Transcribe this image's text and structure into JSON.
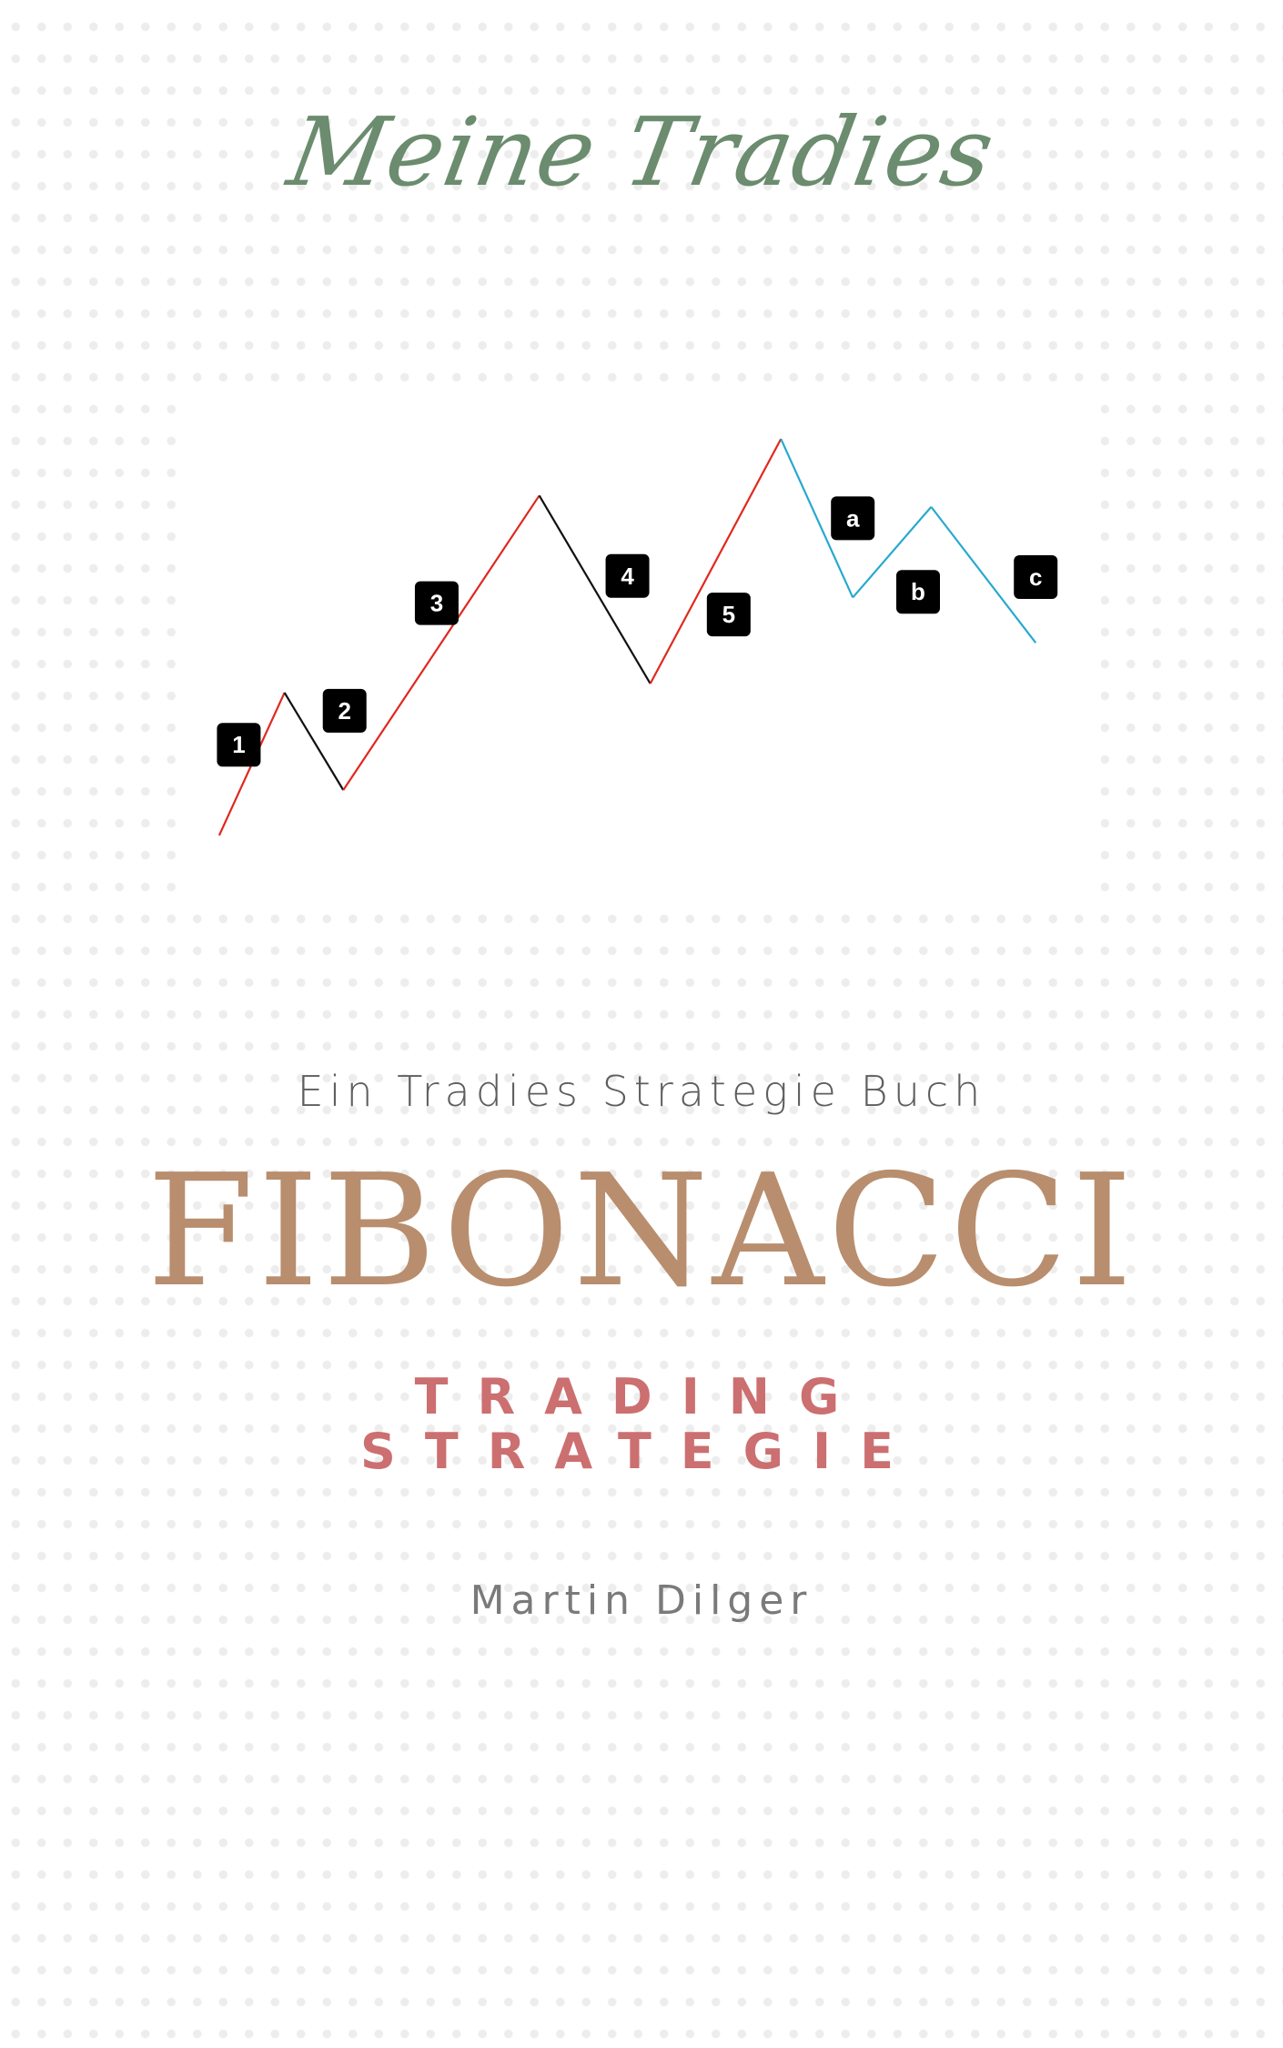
{
  "brand": "Meine Tradies",
  "subtitle": "Ein Tradies Strategie Buch",
  "title": "FIBONACCI",
  "tagline": [
    "TRADING",
    "STRATEGIE"
  ],
  "author": "Martin Dilger",
  "colors": {
    "brand": "#6b8c6e",
    "title": "#b88e6e",
    "tagline": "#cc6f70",
    "impulse": "#e0281e",
    "correction": "#111111",
    "abc": "#28a9cf",
    "label_bg": "#000000",
    "label_text": "#ffffff"
  },
  "wave": {
    "points": [
      {
        "x": 0.0,
        "y": 0.0
      },
      {
        "x": 1.0,
        "y": 1.26
      },
      {
        "x": 1.9,
        "y": 0.4
      },
      {
        "x": 4.9,
        "y": 3.0
      },
      {
        "x": 6.6,
        "y": 1.34
      },
      {
        "x": 8.6,
        "y": 3.5
      },
      {
        "x": 9.7,
        "y": 2.1
      },
      {
        "x": 10.9,
        "y": 2.9
      },
      {
        "x": 12.5,
        "y": 1.7
      }
    ],
    "segments": [
      {
        "from": 0,
        "to": 1,
        "kind": "impulse"
      },
      {
        "from": 1,
        "to": 2,
        "kind": "correction"
      },
      {
        "from": 2,
        "to": 3,
        "kind": "impulse"
      },
      {
        "from": 3,
        "to": 4,
        "kind": "correction"
      },
      {
        "from": 4,
        "to": 5,
        "kind": "impulse"
      },
      {
        "from": 5,
        "to": 6,
        "kind": "abc"
      },
      {
        "from": 6,
        "to": 7,
        "kind": "abc"
      },
      {
        "from": 7,
        "to": 8,
        "kind": "abc"
      }
    ],
    "labels": [
      {
        "text": "1",
        "x": 0.3,
        "y": 0.8
      },
      {
        "text": "2",
        "x": 1.92,
        "y": 1.1
      },
      {
        "text": "3",
        "x": 3.33,
        "y": 2.05
      },
      {
        "text": "4",
        "x": 6.25,
        "y": 2.29
      },
      {
        "text": "5",
        "x": 7.8,
        "y": 1.95
      },
      {
        "text": "a",
        "x": 9.7,
        "y": 2.8
      },
      {
        "text": "b",
        "x": 10.7,
        "y": 2.15
      },
      {
        "text": "c",
        "x": 12.5,
        "y": 2.28
      }
    ],
    "xlim": [
      -0.5,
      13.5
    ],
    "ylim": [
      -0.5,
      4.0
    ]
  }
}
